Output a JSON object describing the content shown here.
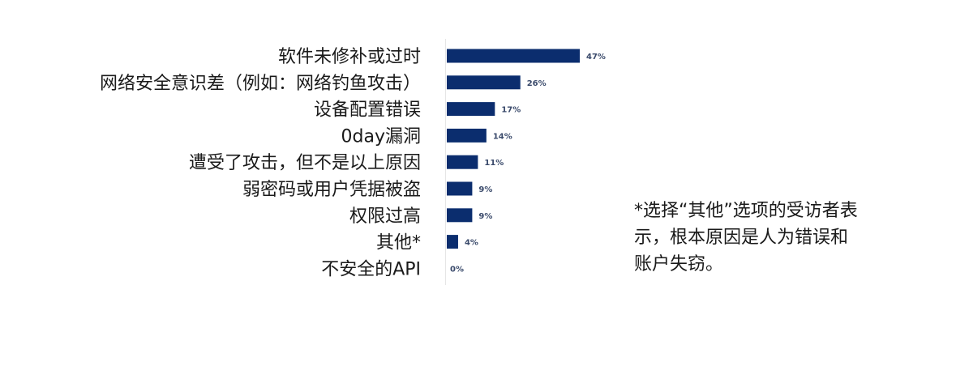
{
  "chart_data": {
    "type": "bar",
    "orientation": "horizontal",
    "categories": [
      "软件未修补或过时",
      "网络安全意识差（例如：网络钓鱼攻击）",
      "设备配置错误",
      "0day漏洞",
      "遭受了攻击，但不是以上原因",
      "弱密码或用户凭据被盗",
      "权限过高",
      "其他*",
      "不安全的API"
    ],
    "values": [
      47,
      26,
      17,
      14,
      11,
      9,
      9,
      4,
      0
    ],
    "value_labels": [
      "47%",
      "26%",
      "17%",
      "14%",
      "11%",
      "9%",
      "9%",
      "4%",
      "0%"
    ],
    "unit": "%",
    "xlim": [
      0,
      47
    ],
    "grid": false,
    "legend": "none",
    "bar_color": "#0b2d6e"
  },
  "footnote": "*选择“其他”选项的受访者表示，根本原因是人为错误和账户失窃。"
}
